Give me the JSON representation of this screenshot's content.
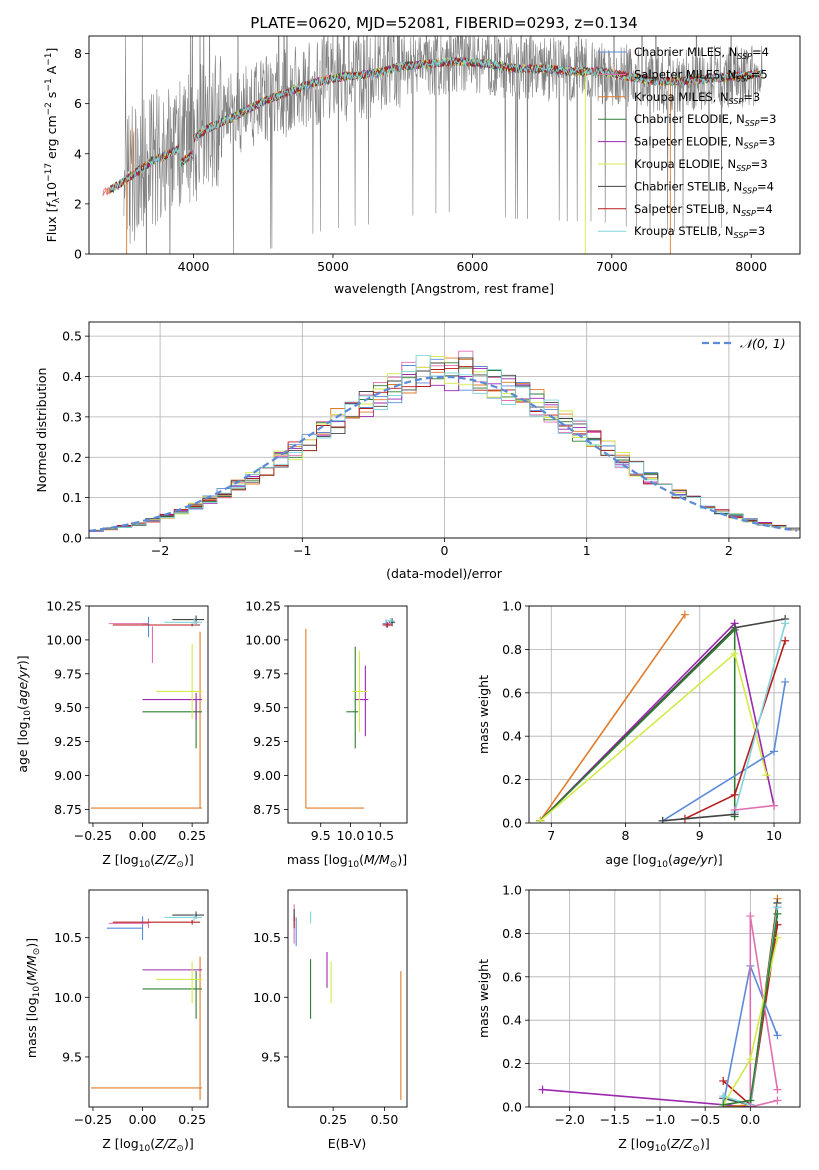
{
  "figure_title": "PLATE=0620, MJD=52081, FIBERID=0293, z=0.134",
  "colors": {
    "chabrier_miles": "#5b8bd8",
    "salpeter_miles": "#e06fb0",
    "kroupa_miles": "#e07b2a",
    "chabrier_elodie": "#2e7d32",
    "salpeter_elodie": "#9c27b0",
    "kroupa_elodie": "#d4ea4a",
    "chabrier_stelib": "#444444",
    "salpeter_stelib": "#b71c1c",
    "kroupa_stelib": "#7fd6dc",
    "data": "#808080",
    "normal": "#5b8bd8"
  },
  "chart_data": [
    {
      "id": "spectrum",
      "type": "line",
      "title": "PLATE=0620, MJD=52081, FIBERID=0293, z=0.134",
      "xlabel": "wavelength [Angstrom, rest frame]",
      "ylabel_parts": [
        "Flux [",
        "f",
        "λ",
        "10",
        "−17",
        " erg cm",
        "−2",
        " s",
        "−1",
        " A",
        "−1",
        "]"
      ],
      "xlim": [
        3250,
        8350
      ],
      "ylim": [
        0,
        8.7
      ],
      "xticks": [
        4000,
        5000,
        6000,
        7000,
        8000
      ],
      "yticks": [
        0,
        2,
        4,
        6,
        8
      ],
      "legend_position": "upper right",
      "legend": [
        {
          "imf": "Chabrier",
          "lib": "MILES",
          "nssp": "4",
          "key": "chabrier_miles"
        },
        {
          "imf": "Salpeter",
          "lib": "MILES",
          "nssp": "5",
          "key": "salpeter_miles"
        },
        {
          "imf": "Kroupa",
          "lib": "MILES",
          "nssp": "3",
          "key": "kroupa_miles"
        },
        {
          "imf": "Chabrier",
          "lib": "ELODIE",
          "nssp": "3",
          "key": "chabrier_elodie"
        },
        {
          "imf": "Salpeter",
          "lib": "ELODIE",
          "nssp": "3",
          "key": "salpeter_elodie"
        },
        {
          "imf": "Kroupa",
          "lib": "ELODIE",
          "nssp": "3",
          "key": "kroupa_elodie"
        },
        {
          "imf": "Chabrier",
          "lib": "STELIB",
          "nssp": "4",
          "key": "chabrier_stelib"
        },
        {
          "imf": "Salpeter",
          "lib": "STELIB",
          "nssp": "4",
          "key": "salpeter_stelib"
        },
        {
          "imf": "Kroupa",
          "lib": "STELIB",
          "nssp": "3",
          "key": "kroupa_stelib"
        }
      ],
      "continuum": [
        [
          3350,
          2.4
        ],
        [
          3500,
          2.9
        ],
        [
          3700,
          3.7
        ],
        [
          3900,
          4.2
        ],
        [
          4000,
          4.6
        ],
        [
          4100,
          5.0
        ],
        [
          4300,
          5.5
        ],
        [
          4500,
          6.1
        ],
        [
          4700,
          6.5
        ],
        [
          4900,
          6.9
        ],
        [
          5100,
          7.1
        ],
        [
          5300,
          7.2
        ],
        [
          5500,
          7.5
        ],
        [
          5700,
          7.6
        ],
        [
          5900,
          7.7
        ],
        [
          6100,
          7.6
        ],
        [
          6300,
          7.4
        ],
        [
          6500,
          7.4
        ],
        [
          6700,
          7.3
        ],
        [
          6900,
          7.3
        ],
        [
          7100,
          7.1
        ],
        [
          7300,
          6.9
        ],
        [
          7500,
          6.9
        ],
        [
          7700,
          7.0
        ],
        [
          7900,
          7.1
        ],
        [
          8080,
          7.2
        ]
      ],
      "data_range": [
        3500,
        8080
      ]
    },
    {
      "id": "residuals",
      "type": "bar",
      "xlabel": "(data-model)/error",
      "ylabel": "Normed distribution",
      "xlim": [
        -2.5,
        2.5
      ],
      "ylim": [
        0,
        0.535
      ],
      "xticks": [
        -2,
        -1,
        0,
        1,
        2
      ],
      "yticks": [
        0.0,
        0.1,
        0.2,
        0.3,
        0.4,
        0.5
      ],
      "legend": {
        "label": "𝒩(0, 1)",
        "position": "upper right"
      },
      "bin_width": 0.1,
      "grid": true
    },
    {
      "id": "age_vs_Z",
      "type": "scatter",
      "xlabel": "Z [log10(Z/Z⊙)]",
      "ylabel": "age  [log10(age/yr)]",
      "xlim": [
        -0.27,
        0.33
      ],
      "ylim": [
        8.65,
        10.25
      ],
      "xticks": [
        -0.25,
        0.0,
        0.25
      ],
      "yticks": [
        8.75,
        9.0,
        9.25,
        9.5,
        9.75,
        10.0,
        10.25
      ],
      "points": [
        {
          "key": "chabrier_miles",
          "x": 0.03,
          "y": 10.12,
          "xerr": [
            0.03,
            0.0
          ],
          "yerr": [
            0.1,
            0.05
          ]
        },
        {
          "key": "salpeter_miles",
          "x": 0.03,
          "y": 10.12,
          "xerr": [
            0.2,
            0.0
          ],
          "yerr": [
            0.0,
            0.0
          ]
        },
        {
          "key": "salpeter_miles",
          "x": 0.05,
          "y": 10.0,
          "xerr": [
            0.0,
            0.0
          ],
          "yerr": [
            0.17,
            0.1
          ]
        },
        {
          "key": "kroupa_miles",
          "x": 0.29,
          "y": 8.76,
          "xerr": [
            0.55,
            0.01
          ],
          "yerr": [
            0.0,
            1.3
          ]
        },
        {
          "key": "chabrier_elodie",
          "x": 0.27,
          "y": 9.47,
          "xerr": [
            0.27,
            0.03
          ],
          "yerr": [
            0.27,
            0.08
          ]
        },
        {
          "key": "salpeter_elodie",
          "x": 0.27,
          "y": 9.56,
          "xerr": [
            0.27,
            0.03
          ],
          "yerr": [
            0.15,
            0.05
          ]
        },
        {
          "key": "kroupa_elodie",
          "x": 0.25,
          "y": 9.62,
          "xerr": [
            0.18,
            0.05
          ],
          "yerr": [
            0.2,
            0.35
          ]
        },
        {
          "key": "chabrier_stelib",
          "x": 0.27,
          "y": 10.15,
          "xerr": [
            0.12,
            0.04
          ],
          "yerr": [
            0.03,
            0.03
          ]
        },
        {
          "key": "salpeter_stelib",
          "x": 0.25,
          "y": 10.11,
          "xerr": [
            0.4,
            0.04
          ],
          "yerr": [
            0.01,
            0.01
          ]
        },
        {
          "key": "kroupa_stelib",
          "x": 0.26,
          "y": 10.13,
          "xerr": [
            0.15,
            0.04
          ],
          "yerr": [
            0.03,
            0.03
          ]
        }
      ]
    },
    {
      "id": "age_vs_mass",
      "type": "scatter",
      "xlabel": "mass [log10(M/M⊙)]",
      "ylabel": "",
      "xlim": [
        8.95,
        10.95
      ],
      "ylim": [
        8.65,
        10.25
      ],
      "xticks": [
        9.5,
        10.0,
        10.5
      ],
      "yticks": [
        8.75,
        9.0,
        9.25,
        9.5,
        9.75,
        10.0,
        10.25
      ],
      "points": [
        {
          "key": "chabrier_miles",
          "x": 10.6,
          "y": 10.12,
          "xerr": [
            0.06,
            0.05
          ],
          "yerr": [
            0.03,
            0.03
          ]
        },
        {
          "key": "salpeter_miles",
          "x": 10.65,
          "y": 10.12,
          "xerr": [
            0.05,
            0.05
          ],
          "yerr": [
            0.02,
            0.02
          ]
        },
        {
          "key": "kroupa_miles",
          "x": 9.25,
          "y": 8.76,
          "xerr": [
            0.0,
            0.98
          ],
          "yerr": [
            0.0,
            1.32
          ]
        },
        {
          "key": "chabrier_elodie",
          "x": 10.08,
          "y": 9.47,
          "xerr": [
            0.15,
            0.05
          ],
          "yerr": [
            0.27,
            0.48
          ]
        },
        {
          "key": "salpeter_elodie",
          "x": 10.25,
          "y": 9.56,
          "xerr": [
            0.17,
            0.05
          ],
          "yerr": [
            0.27,
            0.25
          ]
        },
        {
          "key": "kroupa_elodie",
          "x": 10.15,
          "y": 9.62,
          "xerr": [
            0.12,
            0.13
          ],
          "yerr": [
            0.3,
            0.3
          ]
        },
        {
          "key": "chabrier_stelib",
          "x": 10.7,
          "y": 10.13,
          "xerr": [
            0.05,
            0.05
          ],
          "yerr": [
            0.03,
            0.03
          ]
        },
        {
          "key": "salpeter_stelib",
          "x": 10.62,
          "y": 10.11,
          "xerr": [
            0.08,
            0.08
          ],
          "yerr": [
            0.02,
            0.02
          ]
        },
        {
          "key": "kroupa_stelib",
          "x": 10.67,
          "y": 10.14,
          "xerr": [
            0.07,
            0.07
          ],
          "yerr": [
            0.02,
            0.02
          ]
        }
      ]
    },
    {
      "id": "mass_weight_vs_age",
      "type": "line",
      "xlabel": "age  [log10(age/yr)]",
      "ylabel": "mass weight",
      "xlim": [
        6.7,
        10.35
      ],
      "ylim": [
        0.0,
        1.0
      ],
      "xticks": [
        7,
        8,
        9,
        10
      ],
      "yticks": [
        0.0,
        0.2,
        0.4,
        0.6,
        0.8,
        1.0
      ],
      "grid": true,
      "series": [
        {
          "key": "kroupa_miles",
          "x": [
            6.85,
            8.8
          ],
          "y": [
            0.01,
            0.96
          ]
        },
        {
          "key": "salpeter_elodie",
          "x": [
            6.85,
            9.47,
            10.0
          ],
          "y": [
            0.01,
            0.92,
            0.08
          ]
        },
        {
          "key": "chabrier_stelib",
          "x": [
            6.85,
            9.47,
            10.15
          ],
          "y": [
            0.01,
            0.9,
            0.94
          ]
        },
        {
          "key": "chabrier_elodie",
          "x": [
            6.85,
            9.47,
            9.47
          ],
          "y": [
            0.01,
            0.89,
            0.03
          ]
        },
        {
          "key": "kroupa_elodie",
          "x": [
            6.85,
            9.47,
            9.9
          ],
          "y": [
            0.01,
            0.78,
            0.22
          ]
        },
        {
          "key": "chabrier_miles",
          "x": [
            8.5,
            10.0,
            10.15
          ],
          "y": [
            0.01,
            0.33,
            0.65
          ]
        },
        {
          "key": "salpeter_stelib",
          "x": [
            8.8,
            9.47,
            10.15
          ],
          "y": [
            0.02,
            0.13,
            0.84
          ]
        },
        {
          "key": "kroupa_stelib",
          "x": [
            9.47,
            10.15
          ],
          "y": [
            0.05,
            0.92
          ]
        },
        {
          "key": "salpeter_miles",
          "x": [
            9.47,
            10.0
          ],
          "y": [
            0.06,
            0.08
          ]
        },
        {
          "key": "chabrier_stelib",
          "x": [
            8.5,
            9.47
          ],
          "y": [
            0.01,
            0.04
          ]
        }
      ]
    },
    {
      "id": "mass_vs_Z",
      "type": "scatter",
      "xlabel": "Z [log10(Z/Z⊙)]",
      "ylabel": "mass [log10(M/M⊙)]",
      "xlim": [
        -0.27,
        0.33
      ],
      "ylim": [
        9.08,
        10.9
      ],
      "xticks": [
        -0.25,
        0.0,
        0.25
      ],
      "yticks": [
        9.5,
        10.0,
        10.5
      ],
      "points": [
        {
          "key": "chabrier_miles",
          "x": 0.0,
          "y": 10.58,
          "xerr": [
            0.18,
            0.0
          ],
          "yerr": [
            0.1,
            0.1
          ]
        },
        {
          "key": "salpeter_miles",
          "x": 0.03,
          "y": 10.62,
          "xerr": [
            0.2,
            0.0
          ],
          "yerr": [
            0.04,
            0.04
          ]
        },
        {
          "key": "kroupa_miles",
          "x": 0.29,
          "y": 9.24,
          "xerr": [
            0.55,
            0.01
          ],
          "yerr": [
            0.1,
            1.1
          ]
        },
        {
          "key": "chabrier_elodie",
          "x": 0.27,
          "y": 10.07,
          "xerr": [
            0.27,
            0.03
          ],
          "yerr": [
            0.25,
            0.15
          ]
        },
        {
          "key": "salpeter_elodie",
          "x": 0.27,
          "y": 10.23,
          "xerr": [
            0.27,
            0.03
          ],
          "yerr": [
            0.0,
            0.0
          ]
        },
        {
          "key": "kroupa_elodie",
          "x": 0.25,
          "y": 10.15,
          "xerr": [
            0.18,
            0.05
          ],
          "yerr": [
            0.2,
            0.15
          ]
        },
        {
          "key": "chabrier_stelib",
          "x": 0.27,
          "y": 10.69,
          "xerr": [
            0.12,
            0.04
          ],
          "yerr": [
            0.03,
            0.03
          ]
        },
        {
          "key": "salpeter_stelib",
          "x": 0.25,
          "y": 10.63,
          "xerr": [
            0.4,
            0.04
          ],
          "yerr": [
            0.02,
            0.02
          ]
        },
        {
          "key": "kroupa_stelib",
          "x": 0.26,
          "y": 10.67,
          "xerr": [
            0.15,
            0.04
          ],
          "yerr": [
            0.03,
            0.03
          ]
        }
      ]
    },
    {
      "id": "mass_vs_ebv",
      "type": "scatter",
      "xlabel": "E(B-V)",
      "ylabel": "",
      "xlim": [
        0.03,
        0.61
      ],
      "ylim": [
        9.08,
        10.9
      ],
      "xticks": [
        0.25,
        0.5
      ],
      "yticks": [
        9.5,
        10.0,
        10.5
      ],
      "points": [
        {
          "key": "chabrier_miles",
          "x": 0.07,
          "y": 10.55,
          "xerr": [
            0.0,
            0.0
          ],
          "yerr": [
            0.12,
            0.12
          ]
        },
        {
          "key": "salpeter_miles",
          "x": 0.06,
          "y": 10.6,
          "xerr": [
            0.0,
            0.0
          ],
          "yerr": [
            0.15,
            0.18
          ]
        },
        {
          "key": "kroupa_miles",
          "x": 0.58,
          "y": 9.24,
          "xerr": [
            0.0,
            0.0
          ],
          "yerr": [
            0.1,
            0.98
          ]
        },
        {
          "key": "chabrier_elodie",
          "x": 0.14,
          "y": 10.07,
          "xerr": [
            0.0,
            0.0
          ],
          "yerr": [
            0.25,
            0.25
          ]
        },
        {
          "key": "salpeter_elodie",
          "x": 0.22,
          "y": 10.23,
          "xerr": [
            0.0,
            0.0
          ],
          "yerr": [
            0.15,
            0.15
          ]
        },
        {
          "key": "kroupa_elodie",
          "x": 0.24,
          "y": 10.15,
          "xerr": [
            0.0,
            0.0
          ],
          "yerr": [
            0.2,
            0.15
          ]
        },
        {
          "key": "chabrier_stelib",
          "x": 0.06,
          "y": 10.69,
          "xerr": [
            0.0,
            0.0
          ],
          "yerr": [
            0.05,
            0.05
          ]
        },
        {
          "key": "salpeter_stelib",
          "x": 0.06,
          "y": 10.63,
          "xerr": [
            0.0,
            0.0
          ],
          "yerr": [
            0.05,
            0.05
          ]
        },
        {
          "key": "kroupa_stelib",
          "x": 0.14,
          "y": 10.67,
          "xerr": [
            0.0,
            0.0
          ],
          "yerr": [
            0.05,
            0.05
          ]
        }
      ]
    },
    {
      "id": "mass_weight_vs_Z",
      "type": "line",
      "xlabel": "Z [log10(Z/Z⊙)]",
      "ylabel": "mass weight",
      "xlim": [
        -2.45,
        0.55
      ],
      "ylim": [
        0.0,
        1.0
      ],
      "xticks": [
        -2.0,
        -1.5,
        -1.0,
        -0.5,
        0.0
      ],
      "yticks": [
        0.0,
        0.2,
        0.4,
        0.6,
        0.8,
        1.0
      ],
      "grid": true,
      "series": [
        {
          "key": "salpeter_elodie",
          "x": [
            -2.3,
            0.0,
            0.3
          ],
          "y": [
            0.08,
            0.0,
            0.92
          ]
        },
        {
          "key": "kroupa_miles",
          "x": [
            -0.3,
            0.0,
            0.3
          ],
          "y": [
            0.0,
            0.01,
            0.96
          ]
        },
        {
          "key": "salpeter_stelib",
          "x": [
            -0.3,
            0.0,
            0.3
          ],
          "y": [
            0.12,
            0.01,
            0.84
          ]
        },
        {
          "key": "chabrier_stelib",
          "x": [
            -0.3,
            0.0,
            0.3
          ],
          "y": [
            0.04,
            0.01,
            0.94
          ]
        },
        {
          "key": "chabrier_miles",
          "x": [
            -0.3,
            0.0,
            0.3
          ],
          "y": [
            0.01,
            0.65,
            0.33
          ]
        },
        {
          "key": "salpeter_miles",
          "x": [
            0.0,
            0.0,
            0.3
          ],
          "y": [
            0.01,
            0.88,
            0.08
          ]
        },
        {
          "key": "kroupa_stelib",
          "x": [
            -0.3,
            0.0,
            0.3
          ],
          "y": [
            0.05,
            0.01,
            0.92
          ]
        },
        {
          "key": "kroupa_elodie",
          "x": [
            -0.3,
            0.0,
            0.3
          ],
          "y": [
            0.01,
            0.22,
            0.78
          ]
        },
        {
          "key": "chabrier_elodie",
          "x": [
            -0.3,
            0.0,
            0.3
          ],
          "y": [
            0.01,
            0.03,
            0.89
          ]
        },
        {
          "key": "salpeter_miles",
          "x": [
            0.0,
            0.3
          ],
          "y": [
            0.0,
            0.03
          ]
        }
      ]
    }
  ]
}
